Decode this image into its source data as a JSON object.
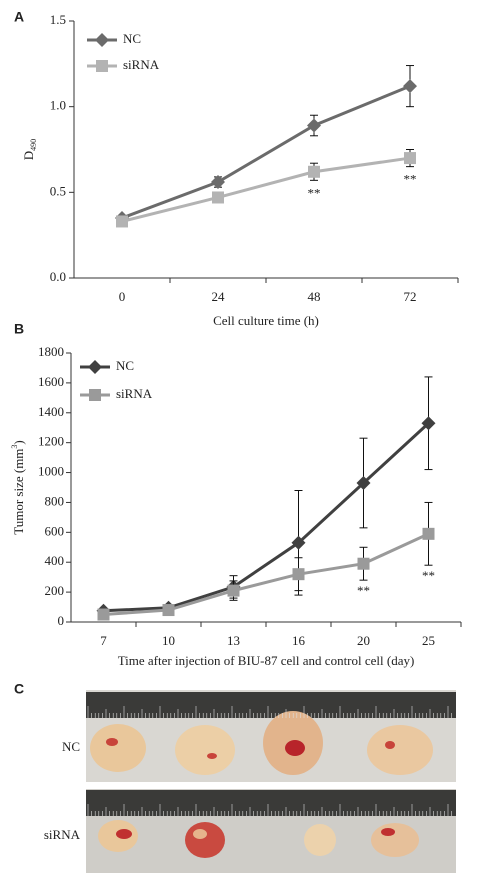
{
  "chart_data": [
    {
      "type": "line",
      "panel": "A",
      "categories": [
        "0",
        "24",
        "48",
        "72"
      ],
      "x_label": "Cell culture time (h)",
      "y_label": "D",
      "y_label_sub": "490",
      "ylim": [
        0,
        1.5
      ],
      "yticks": [
        {
          "value": 0,
          "label": "0.0"
        },
        0.5,
        {
          "value": 1,
          "label": "1.0"
        },
        1.5
      ],
      "series": [
        {
          "name": "NC",
          "color": "#6b6b6b",
          "marker": "diamond",
          "values": [
            0.35,
            0.56,
            0.89,
            1.12
          ],
          "errors": [
            0.01,
            0.03,
            0.06,
            0.12
          ]
        },
        {
          "name": "siRNA",
          "color": "#b3b3b3",
          "marker": "square",
          "values": [
            0.33,
            0.47,
            0.62,
            0.7
          ],
          "errors": [
            0.01,
            0.02,
            0.05,
            0.05
          ],
          "value_notes": [
            null,
            null,
            "**",
            "**"
          ]
        }
      ]
    },
    {
      "type": "line",
      "panel": "B",
      "categories": [
        "7",
        "10",
        "13",
        "16",
        "20",
        "25"
      ],
      "x_label": "Time after injection of BIU-87 cell and control cell (day)",
      "y_label": "Tumor size (mm",
      "y_label_sup": "3",
      "y_label_end": ")",
      "ylim": [
        0,
        1800
      ],
      "yticks": [
        0,
        200,
        400,
        600,
        800,
        1000,
        1200,
        1400,
        1600,
        1800
      ],
      "series": [
        {
          "name": "NC",
          "color": "#404040",
          "marker": "diamond",
          "values": [
            75,
            95,
            235,
            530,
            930,
            1330
          ],
          "errors": [
            10,
            15,
            75,
            350,
            300,
            310
          ]
        },
        {
          "name": "siRNA",
          "color": "#9a9a9a",
          "marker": "square",
          "values": [
            50,
            80,
            210,
            320,
            390,
            590
          ],
          "errors": [
            8,
            12,
            65,
            110,
            110,
            210
          ],
          "value_notes": [
            null,
            null,
            null,
            null,
            "**",
            "**"
          ]
        }
      ]
    }
  ],
  "photo_panel": {
    "label": "C",
    "rows": [
      "NC",
      "siRNA"
    ]
  }
}
